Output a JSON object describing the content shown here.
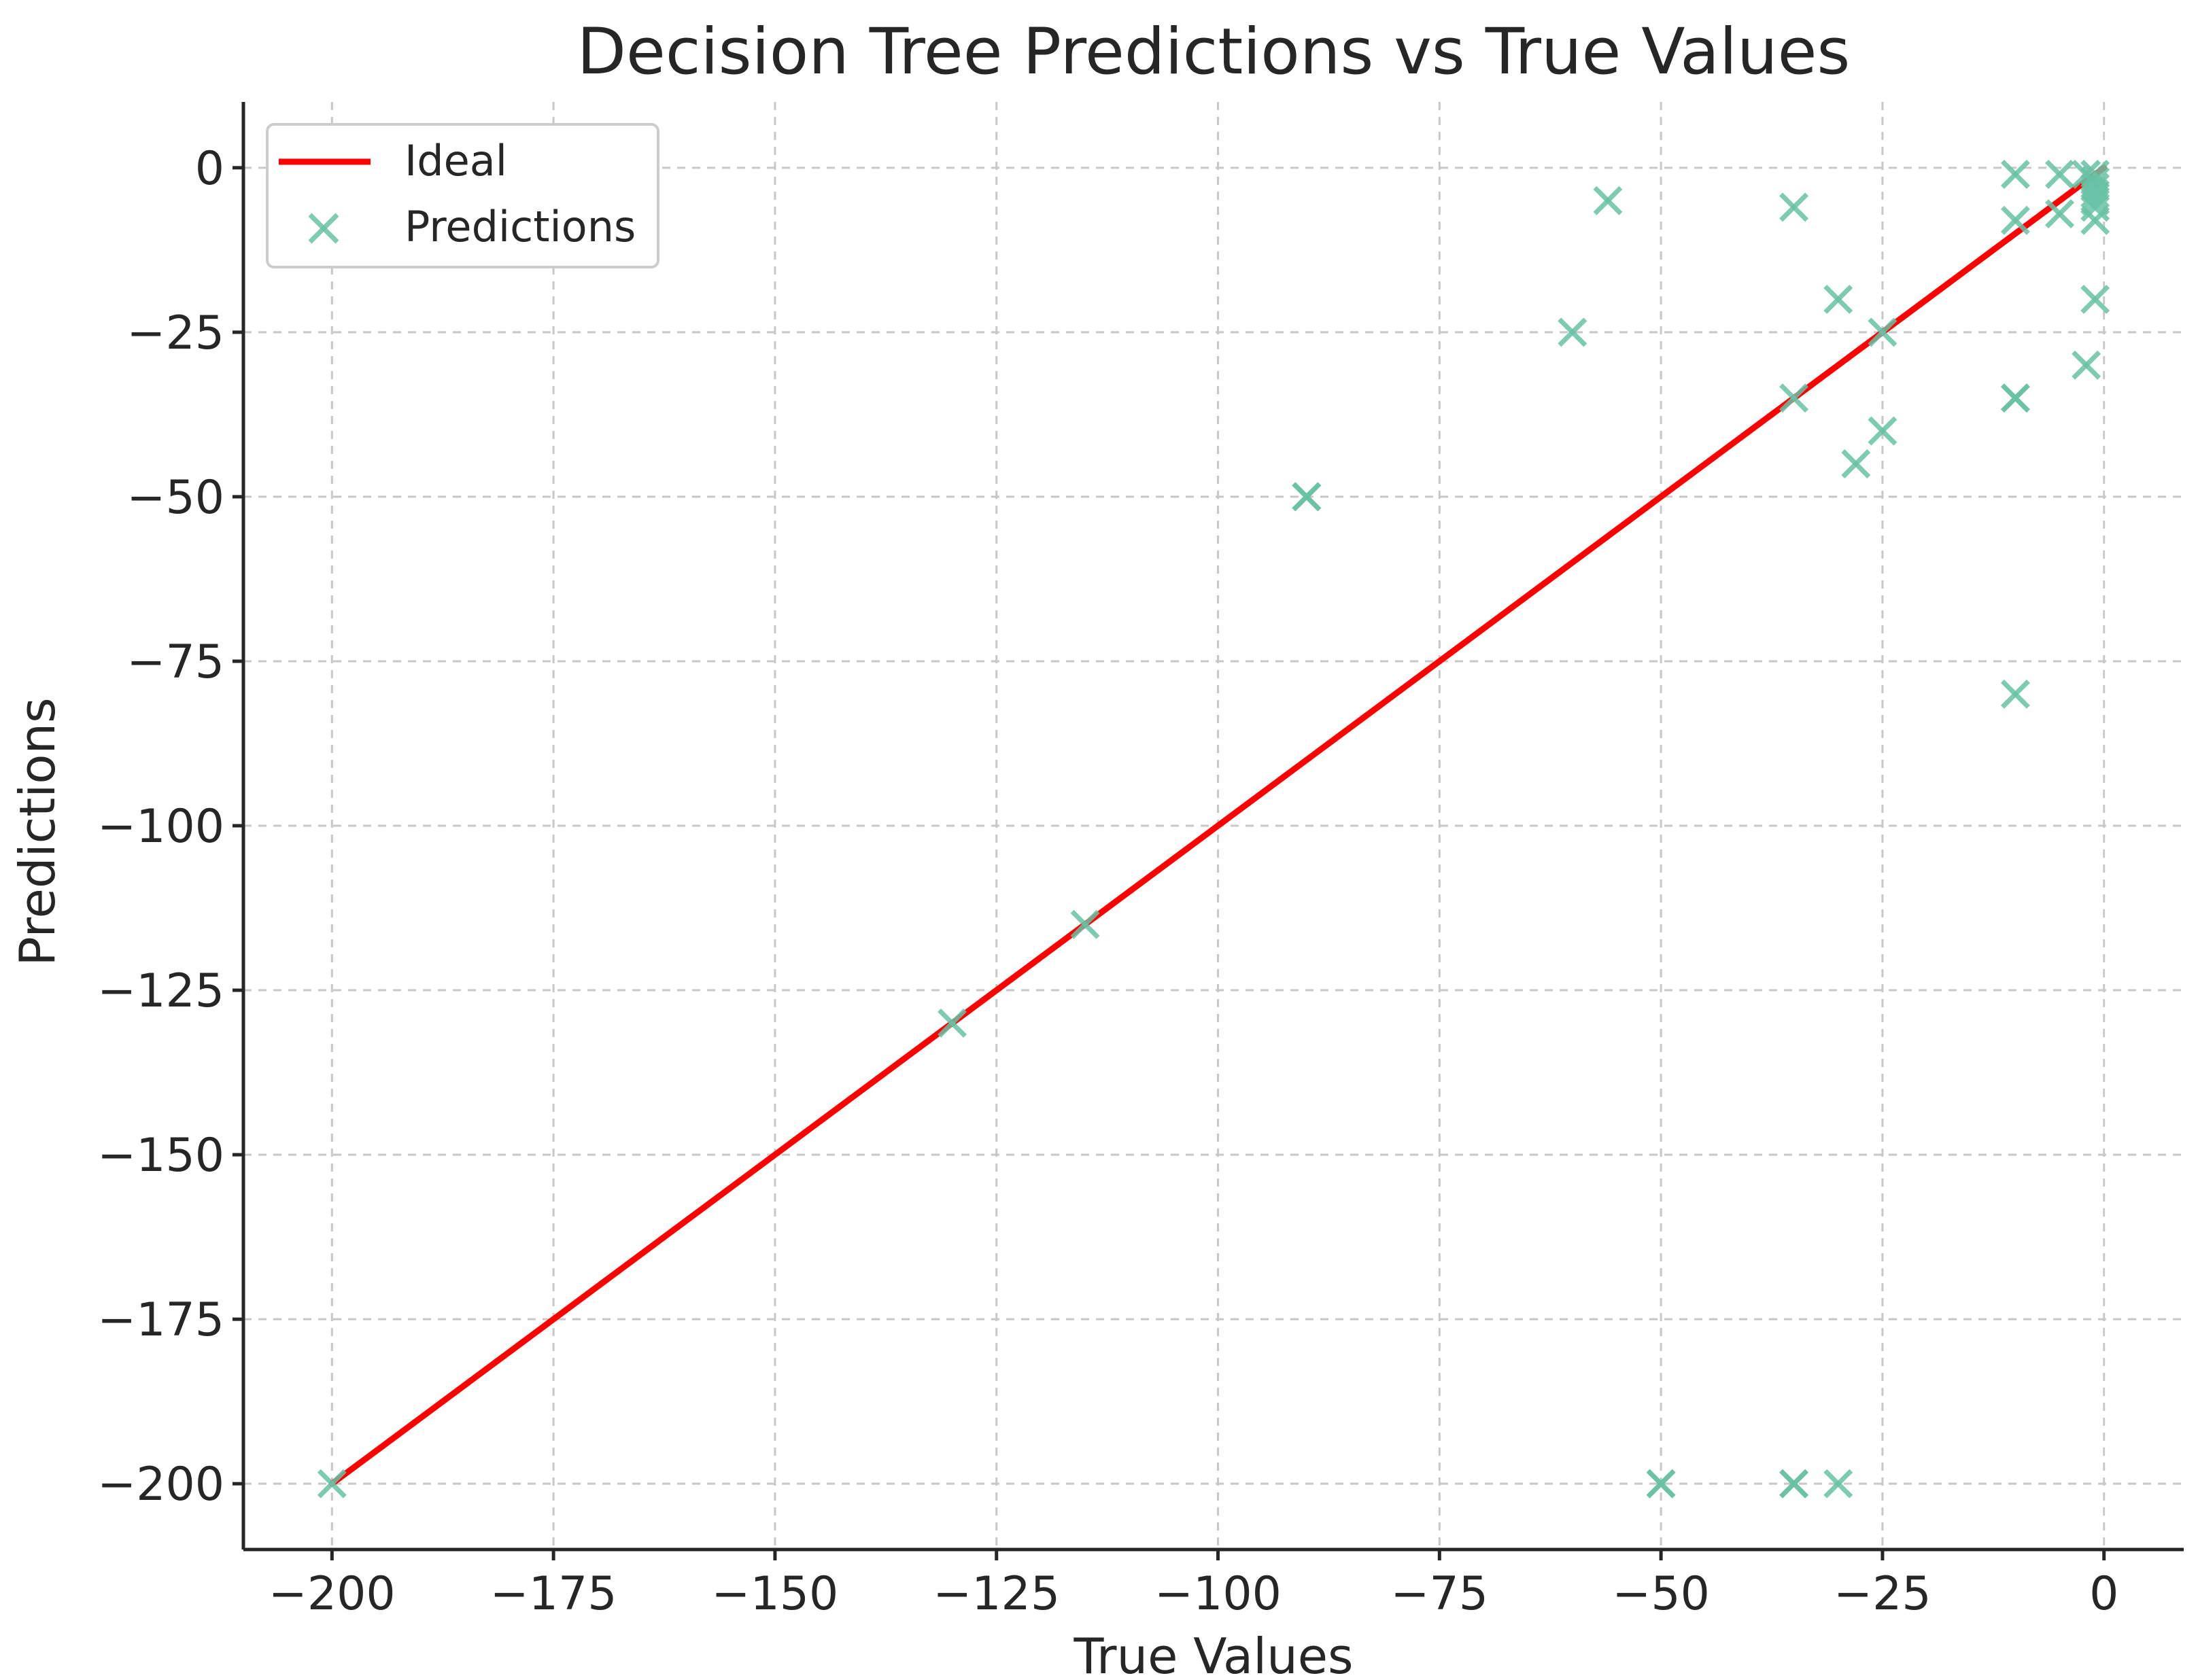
{
  "chart_data": {
    "type": "scatter",
    "title": "Decision Tree Predictions vs True Values",
    "xlabel": "True Values",
    "ylabel": "Predictions",
    "xlim": [
      -210,
      9
    ],
    "ylim": [
      -210,
      10
    ],
    "xticks": [
      -200,
      -175,
      -150,
      -125,
      -100,
      -75,
      -50,
      -25,
      0
    ],
    "yticks": [
      0,
      -25,
      -50,
      -75,
      -100,
      -125,
      -150,
      -175,
      -200
    ],
    "xtick_labels": [
      "−200",
      "−175",
      "−150",
      "−125",
      "−100",
      "−75",
      "−50",
      "−25",
      "0"
    ],
    "ytick_labels": [
      "0",
      "−25",
      "−50",
      "−75",
      "−100",
      "−125",
      "−150",
      "−175",
      "−200"
    ],
    "grid": true,
    "legend_position": "top-left",
    "series": [
      {
        "name": "Ideal",
        "kind": "line",
        "color": "#ff0000",
        "x": [
          -200,
          0
        ],
        "y": [
          -200,
          0
        ]
      },
      {
        "name": "Predictions",
        "kind": "scatter",
        "marker": "x",
        "color": "#66c2a5",
        "x": [
          -200,
          -130,
          -115,
          -90,
          -90,
          -60,
          -56,
          -50,
          -50,
          -35,
          -35,
          -35,
          -35,
          -30,
          -30,
          -28,
          -25,
          -25,
          -10,
          -10,
          -10,
          -10,
          -10,
          -5,
          -5,
          -2,
          -2,
          -1,
          -1,
          -1,
          -1,
          -1,
          -1,
          -1,
          -1
        ],
        "y": [
          -200,
          -130,
          -115,
          -50,
          -50,
          -25,
          -5,
          -200,
          -200,
          -6,
          -35,
          -200,
          -200,
          -20,
          -200,
          -45,
          -25,
          -40,
          -1,
          -8,
          -35,
          -35,
          -80,
          -1,
          -7,
          -1,
          -30,
          -1,
          -2,
          -3,
          -4,
          -5,
          -6,
          -8,
          -20
        ]
      }
    ]
  }
}
